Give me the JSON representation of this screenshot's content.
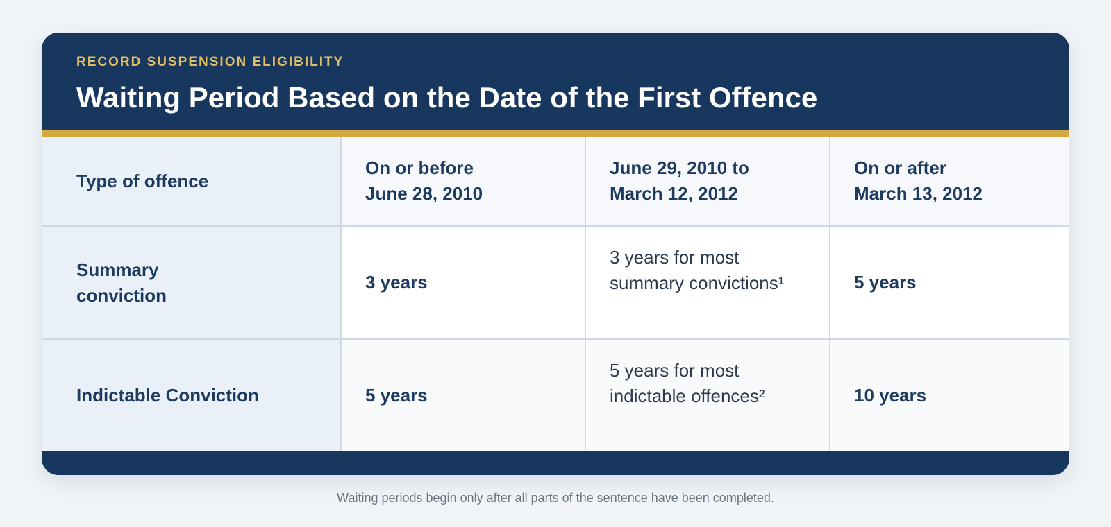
{
  "header": {
    "eyebrow": "RECORD SUSPENSION ELIGIBILITY",
    "title": "Waiting Period Based on the Date of the First Offence"
  },
  "table": {
    "columns": [
      [
        "Type of offence"
      ],
      [
        "On or before",
        "June 28, 2010"
      ],
      [
        "June 29, 2010 to",
        "March 12, 2012"
      ],
      [
        "On or after",
        "March 13, 2012"
      ]
    ],
    "rows": [
      [
        [
          "Summary",
          "conviction"
        ],
        [
          "3 years"
        ],
        [
          "3 years for most",
          "summary convictions¹"
        ],
        [
          "5 years"
        ]
      ],
      [
        [
          "Indictable Conviction"
        ],
        [
          "5 years"
        ],
        [
          "5 years for most",
          "indictable offences²"
        ],
        [
          "10 years"
        ]
      ]
    ]
  },
  "footnote": "Waiting periods begin only after all parts of the sentence have been completed."
}
